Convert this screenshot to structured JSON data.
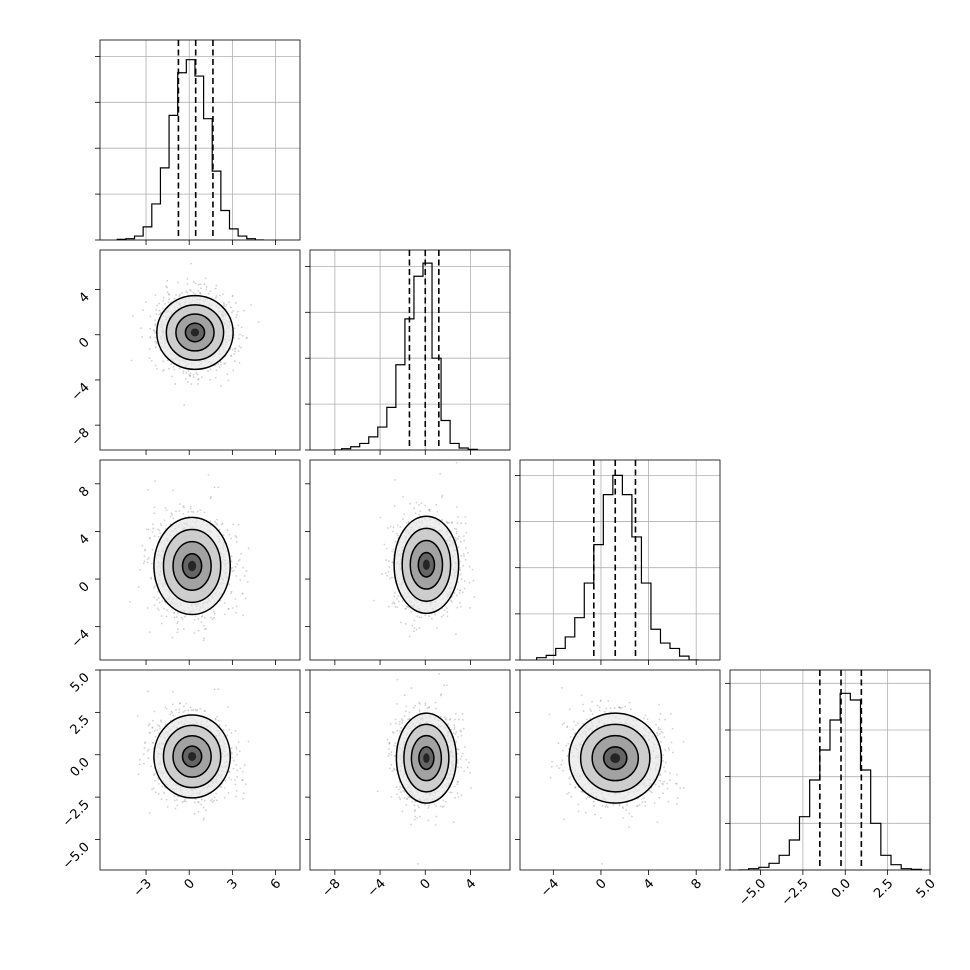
{
  "chart_data": {
    "type": "corner",
    "grid": true,
    "variables": [
      {
        "id": "p0",
        "range": [
          -6.2,
          7.7
        ],
        "ticks": [
          -3,
          0,
          3,
          6
        ],
        "tick_labels": [
          "−3",
          "0",
          "3",
          "6"
        ]
      },
      {
        "id": "p1",
        "range": [
          -10.2,
          7.5
        ],
        "ticks": [
          -8,
          -4,
          0,
          4
        ],
        "tick_labels": [
          "−8",
          "−4",
          "0",
          "4"
        ]
      },
      {
        "id": "p2",
        "range": [
          -6.8,
          10.0
        ],
        "ticks": [
          -4,
          0,
          4,
          8
        ],
        "tick_labels": [
          "−4",
          "0",
          "4",
          "8"
        ]
      },
      {
        "id": "p3",
        "range": [
          -6.8,
          5.0
        ],
        "ticks": [
          -5.0,
          -2.5,
          0.0,
          2.5,
          5.0
        ],
        "tick_labels": [
          "−5.0",
          "−2.5",
          "0.0",
          "2.5",
          "5.0"
        ]
      }
    ],
    "marginals": [
      {
        "variable": "p0",
        "bin_edges": [
          -5.0,
          -4.4,
          -3.8,
          -3.2,
          -2.6,
          -2.0,
          -1.4,
          -0.8,
          -0.2,
          0.4,
          1.0,
          1.6,
          2.2,
          2.8,
          3.4,
          4.0,
          4.6,
          5.2
        ],
        "counts": [
          1,
          2,
          6,
          20,
          55,
          110,
          190,
          255,
          275,
          250,
          185,
          105,
          45,
          17,
          6,
          2,
          0
        ],
        "ylim": [
          0,
          305
        ],
        "yticks": [
          0,
          70,
          140,
          210,
          280
        ],
        "quantiles": [
          -0.75,
          0.45,
          1.65
        ]
      },
      {
        "variable": "p1",
        "bin_edges": [
          -8.2,
          -7.4,
          -6.6,
          -5.8,
          -5.0,
          -4.2,
          -3.4,
          -2.6,
          -1.8,
          -1.0,
          -0.2,
          0.6,
          1.4,
          2.2,
          3.0,
          3.8,
          4.6
        ],
        "counts": [
          0,
          2,
          5,
          10,
          20,
          35,
          65,
          130,
          200,
          265,
          285,
          140,
          45,
          10,
          3,
          1
        ],
        "ylim": [
          0,
          305
        ],
        "yticks": [
          0,
          70,
          140,
          210,
          280
        ],
        "quantiles": [
          -1.4,
          0.0,
          1.2
        ]
      },
      {
        "variable": "p2",
        "bin_edges": [
          -5.4,
          -4.6,
          -3.8,
          -3.0,
          -2.2,
          -1.4,
          -0.6,
          0.2,
          1.0,
          1.8,
          2.6,
          3.4,
          4.2,
          5.0,
          5.8,
          6.6,
          7.4,
          8.2
        ],
        "counts": [
          3,
          6,
          15,
          30,
          55,
          100,
          150,
          215,
          240,
          215,
          160,
          100,
          40,
          22,
          15,
          5,
          0
        ],
        "ylim": [
          0,
          260
        ],
        "yticks": [
          0,
          60,
          120,
          180,
          240
        ],
        "quantiles": [
          -0.6,
          1.2,
          2.9
        ]
      },
      {
        "variable": "p3",
        "bin_edges": [
          -6.3,
          -5.7,
          -5.1,
          -4.5,
          -3.9,
          -3.3,
          -2.7,
          -2.1,
          -1.5,
          -0.9,
          -0.3,
          0.3,
          0.9,
          1.5,
          2.1,
          2.7,
          3.3,
          3.9,
          4.5
        ],
        "counts": [
          0,
          2,
          4,
          10,
          22,
          45,
          80,
          135,
          180,
          225,
          265,
          255,
          150,
          70,
          22,
          8,
          2,
          1
        ],
        "ylim": [
          0,
          300
        ],
        "yticks": [
          0,
          70,
          140,
          210,
          280
        ],
        "quantiles": [
          -1.5,
          -0.25,
          0.95
        ]
      }
    ],
    "pairs": [
      {
        "x": "p0",
        "y": "p1",
        "center": [
          0.4,
          0.2
        ],
        "sigma": [
          1.3,
          1.6
        ]
      },
      {
        "x": "p0",
        "y": "p2",
        "center": [
          0.2,
          1.1
        ],
        "sigma": [
          1.3,
          2.0
        ]
      },
      {
        "x": "p1",
        "y": "p2",
        "center": [
          0.1,
          1.2
        ],
        "sigma": [
          1.4,
          2.0
        ]
      },
      {
        "x": "p0",
        "y": "p3",
        "center": [
          0.2,
          -0.1
        ],
        "sigma": [
          1.3,
          1.2
        ]
      },
      {
        "x": "p1",
        "y": "p3",
        "center": [
          0.1,
          -0.2
        ],
        "sigma": [
          1.3,
          1.3
        ]
      },
      {
        "x": "p2",
        "y": "p3",
        "center": [
          1.2,
          -0.2
        ],
        "sigma": [
          1.9,
          1.3
        ]
      }
    ],
    "contour_levels_sigma": [
      0.5,
      1.0,
      1.5,
      2.0
    ],
    "density_shading": "grey 2D histogram with scatter points outside contours"
  }
}
